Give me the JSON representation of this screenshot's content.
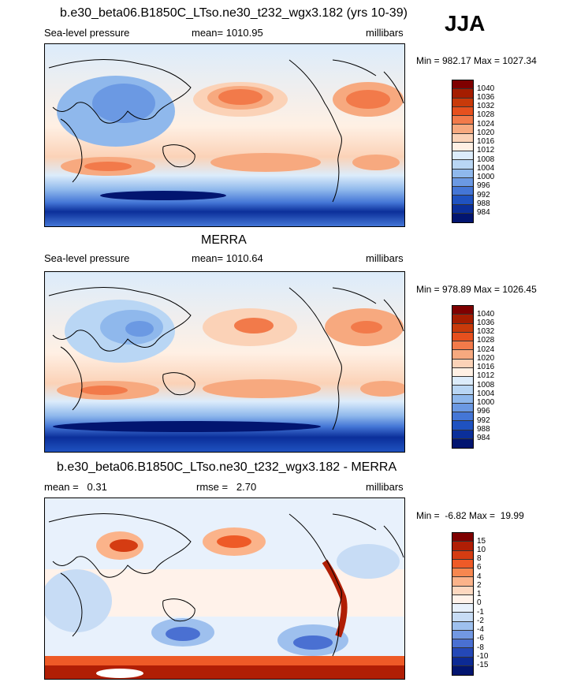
{
  "season": "JJA",
  "panels": [
    {
      "title": "b.e30_beta06.B1850C_LTso.ne30_t232_wgx3.182 (yrs 10-39)",
      "left_label": "Sea-level pressure",
      "center_label": "mean= 1010.95",
      "right_label": "millibars",
      "minmax": "Min = 982.17 Max = 1027.34",
      "colorbar": {
        "labels": [
          "1040",
          "1036",
          "1032",
          "1028",
          "1024",
          "1020",
          "1016",
          "1012",
          "1008",
          "1004",
          "1000",
          "996",
          "992",
          "988",
          "984"
        ],
        "colors": [
          "#7f0000",
          "#a51d00",
          "#c83a0a",
          "#e6501e",
          "#f27a4a",
          "#f7a97f",
          "#fbd2b7",
          "#fff0e4",
          "#dcecfb",
          "#b9d6f4",
          "#8fb8ec",
          "#6b99e3",
          "#4476d6",
          "#1f52c0",
          "#0b2f9a",
          "#021570"
        ]
      }
    },
    {
      "title": "MERRA",
      "left_label": "Sea-level pressure",
      "center_label": "mean= 1010.64",
      "right_label": "millibars",
      "minmax": "Min = 978.89 Max = 1026.45",
      "colorbar": {
        "labels": [
          "1040",
          "1036",
          "1032",
          "1028",
          "1024",
          "1020",
          "1016",
          "1012",
          "1008",
          "1004",
          "1000",
          "996",
          "992",
          "988",
          "984"
        ],
        "colors": [
          "#7f0000",
          "#a51d00",
          "#c83a0a",
          "#e6501e",
          "#f27a4a",
          "#f7a97f",
          "#fbd2b7",
          "#fff0e4",
          "#dcecfb",
          "#b9d6f4",
          "#8fb8ec",
          "#6b99e3",
          "#4476d6",
          "#1f52c0",
          "#0b2f9a",
          "#021570"
        ]
      }
    },
    {
      "title": "b.e30_beta06.B1850C_LTso.ne30_t232_wgx3.182 - MERRA",
      "left_label": "mean =   0.31",
      "center_label": "rmse =   2.70",
      "right_label": "millibars",
      "minmax": "Min =  -6.82 Max =  19.99",
      "colorbar": {
        "labels": [
          "15",
          "10",
          "8",
          "6",
          "4",
          "2",
          "1",
          "0",
          "-1",
          "-2",
          "-4",
          "-6",
          "-8",
          "-10",
          "-15"
        ],
        "colors": [
          "#7f0000",
          "#b01e05",
          "#d53c12",
          "#ee5a27",
          "#f7874f",
          "#fbb38a",
          "#fdd8c0",
          "#fff2ea",
          "#e8f1fc",
          "#c7dcf5",
          "#9ec0ee",
          "#7298e2",
          "#4a70d2",
          "#2448b7",
          "#0c2a94",
          "#021570"
        ]
      }
    }
  ]
}
